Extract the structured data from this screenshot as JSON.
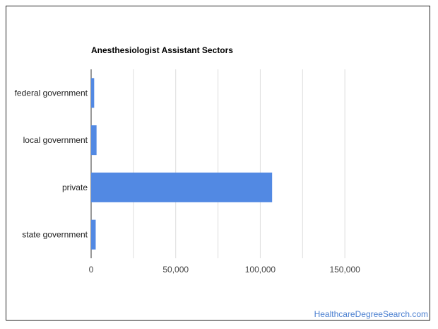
{
  "chart_data": {
    "type": "bar",
    "orientation": "horizontal",
    "title": "Anesthesiologist Assistant Sectors",
    "categories": [
      "federal government",
      "local government",
      "private",
      "state government"
    ],
    "values": [
      1800,
      3200,
      107000,
      2700
    ],
    "xlim": [
      0,
      175000
    ],
    "xticks": [
      0,
      50000,
      100000,
      150000
    ],
    "tick_labels": [
      "0",
      "50,000",
      "100,000",
      "150,000"
    ],
    "gridlines": [
      25000,
      50000,
      75000,
      100000,
      125000,
      150000
    ],
    "bar_color": "#5289e3",
    "grid": true
  },
  "footer": {
    "source": "HealthcareDegreeSearch.com"
  }
}
